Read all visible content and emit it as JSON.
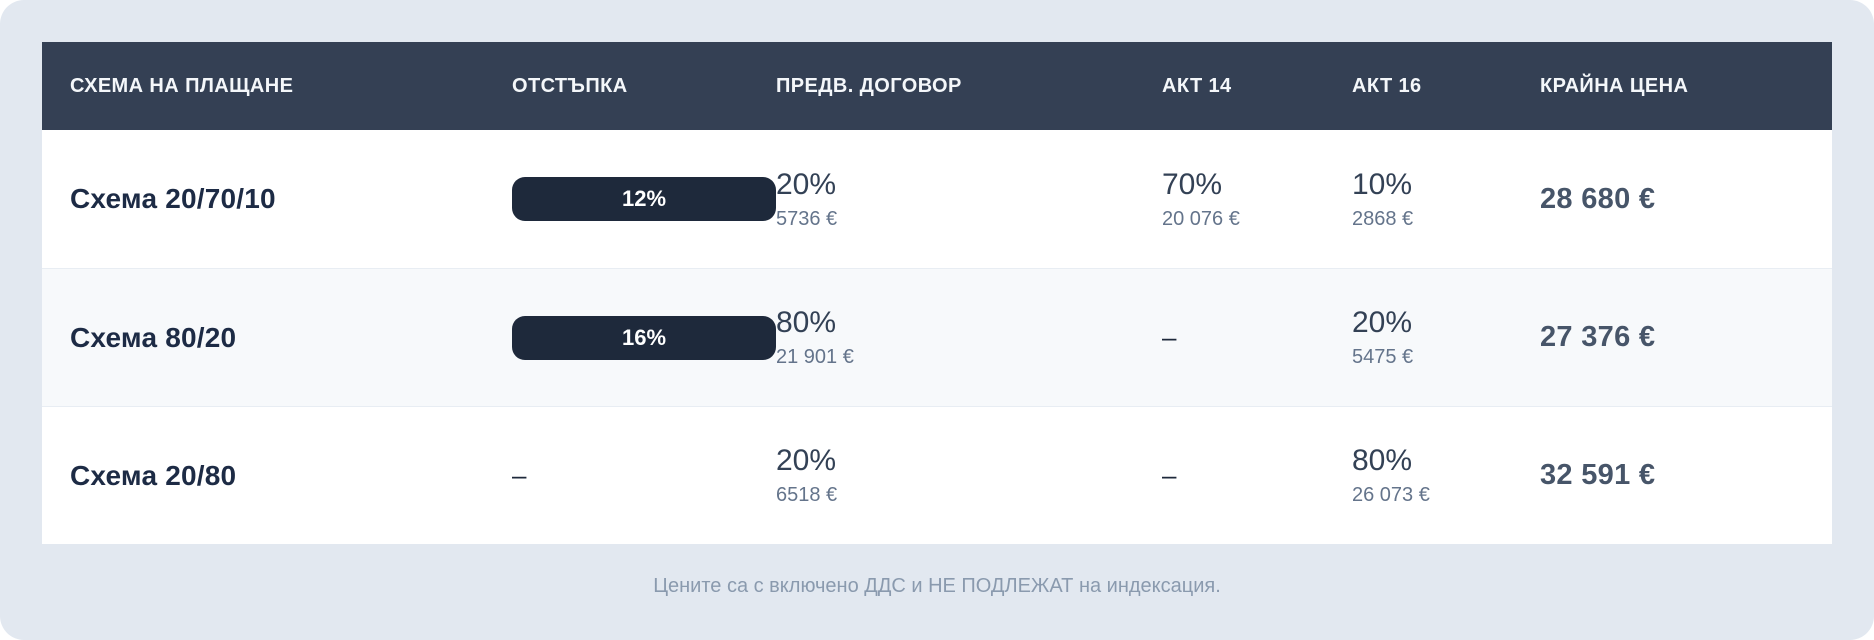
{
  "colors": {
    "page_background": "#e2e8f0",
    "header_background": "#344054",
    "badge_background": "#1e293b",
    "row_alt_background": "#f7f9fb",
    "scheme_text": "#1d2b45",
    "percent_text": "#334155",
    "amount_text": "#64748b",
    "final_price_text": "#475569",
    "footnote_text": "#8a9aae"
  },
  "table": {
    "columns": [
      {
        "key": "scheme",
        "label": "СХЕМА НА ПЛАЩАНЕ"
      },
      {
        "key": "discount",
        "label": "ОТСТЪПКА"
      },
      {
        "key": "prelim",
        "label": "ПРЕДВ. ДОГОВОР"
      },
      {
        "key": "act14",
        "label": "АКТ 14"
      },
      {
        "key": "act16",
        "label": "АКТ 16"
      },
      {
        "key": "final",
        "label": "КРАЙНА ЦЕНА"
      }
    ],
    "rows": [
      {
        "scheme": "Схема 20/70/10",
        "discount": {
          "badge": "12%"
        },
        "prelim": {
          "percent": "20%",
          "amount": "5736 €"
        },
        "act14": {
          "percent": "70%",
          "amount": "20 076 €"
        },
        "act16": {
          "percent": "10%",
          "amount": "2868 €"
        },
        "final": "28 680 €"
      },
      {
        "scheme": "Схема 80/20",
        "discount": {
          "badge": "16%"
        },
        "prelim": {
          "percent": "80%",
          "amount": "21 901 €"
        },
        "act14": {
          "dash": "–"
        },
        "act16": {
          "percent": "20%",
          "amount": "5475 €"
        },
        "final": "27 376 €"
      },
      {
        "scheme": "Схема 20/80",
        "discount": {
          "dash": "–"
        },
        "prelim": {
          "percent": "20%",
          "amount": "6518 €"
        },
        "act14": {
          "dash": "–"
        },
        "act16": {
          "percent": "80%",
          "amount": "26 073 €"
        },
        "final": "32 591 €"
      }
    ]
  },
  "footer": {
    "note": "Цените са с включено ДДС и НЕ ПОДЛЕЖАТ на индексация."
  }
}
